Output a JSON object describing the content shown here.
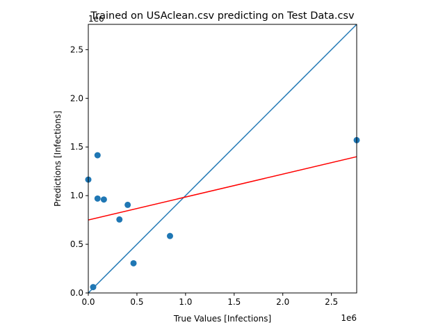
{
  "chart_data": {
    "type": "scatter",
    "title": "Trained on USAclean.csv predicting on Test Data.csv",
    "xlabel": "True Values [Infections]",
    "ylabel": "Predictions [Infections]",
    "x_offset_label": "1e6",
    "y_offset_label": "1e6",
    "xlim": [
      0,
      2760000
    ],
    "ylim": [
      0,
      2760000
    ],
    "xticks": [
      0,
      500000,
      1000000,
      1500000,
      2000000,
      2500000
    ],
    "yticks": [
      0,
      500000,
      1000000,
      1500000,
      2000000,
      2500000
    ],
    "xtick_labels": [
      "0.0",
      "0.5",
      "1.0",
      "1.5",
      "2.0",
      "2.5"
    ],
    "ytick_labels": [
      "0.0",
      "0.5",
      "1.0",
      "1.5",
      "2.0",
      "2.5"
    ],
    "grid": false,
    "points": [
      {
        "x": 0,
        "y": 1165000
      },
      {
        "x": 50000,
        "y": 60000
      },
      {
        "x": 95000,
        "y": 1415000
      },
      {
        "x": 95000,
        "y": 970000
      },
      {
        "x": 160000,
        "y": 960000
      },
      {
        "x": 320000,
        "y": 755000
      },
      {
        "x": 405000,
        "y": 905000
      },
      {
        "x": 465000,
        "y": 305000
      },
      {
        "x": 840000,
        "y": 585000
      },
      {
        "x": 2760000,
        "y": 1570000
      }
    ],
    "identity_line": {
      "x": [
        0,
        2760000
      ],
      "y": [
        0,
        2760000
      ]
    },
    "fit_line": {
      "x": [
        0,
        2760000
      ],
      "y": [
        750000,
        1400000
      ]
    },
    "colors": {
      "points": "#1f77b4",
      "identity": "#1f77b4",
      "fit": "#ff0000"
    }
  }
}
